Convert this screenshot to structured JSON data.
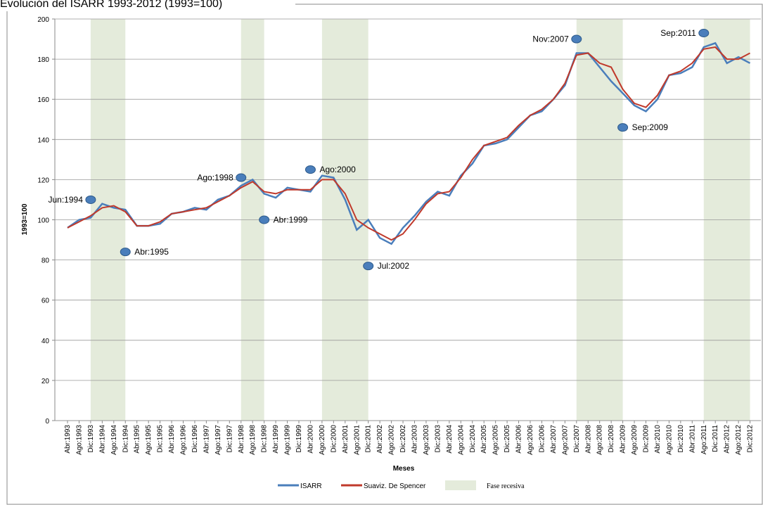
{
  "chart_data": {
    "type": "line",
    "title": "Evolución del ISARR 1993-2012 (1993=100)",
    "y_label": "1993=100",
    "x_label": "Meses",
    "categories": [
      "Abr:1993",
      "Ago:1993",
      "Dic:1993",
      "Abr:1994",
      "Ago:1994",
      "Dic:1994",
      "Abr:1995",
      "Ago:1995",
      "Dic:1995",
      "Abr:1996",
      "Ago:1996",
      "Dic:1996",
      "Abr:1997",
      "Ago:1997",
      "Dic:1997",
      "Abr:1998",
      "Ago:1998",
      "Dic:1998",
      "Abr:1999",
      "Ago:1999",
      "Dic:1999",
      "Abr:2000",
      "Ago:2000",
      "Dic:2000",
      "Abr:2001",
      "Ago:2001",
      "Dic:2001",
      "Abr:2002",
      "Ago:2002",
      "Dic:2002",
      "Abr:2003",
      "Ago:2003",
      "Dic:2003",
      "Abr:2004",
      "Ago:2004",
      "Dic:2004",
      "Abr:2005",
      "Ago:2005",
      "Dic:2005",
      "Abr:2006",
      "Ago:2006",
      "Dic:2006",
      "Abr:2007",
      "Ago:2007",
      "Dic:2007",
      "Abr:2008",
      "Ago:2008",
      "Dic:2008",
      "Abr:2009",
      "Ago:2009",
      "Dic:2009",
      "Abr:2010",
      "Ago:2010",
      "Dic:2010",
      "Abr:2011",
      "Ago:2011",
      "Dic:2011",
      "Abr:2012",
      "Ago:2012",
      "Dic:2012"
    ],
    "series": [
      {
        "name": "ISARR",
        "color": "#4a7ebb",
        "values": [
          96,
          100,
          101,
          108,
          106,
          105,
          97,
          97,
          98,
          103,
          104,
          106,
          105,
          110,
          112,
          117,
          120,
          113,
          111,
          116,
          115,
          114,
          122,
          121,
          110,
          95,
          100,
          91,
          88,
          96,
          102,
          109,
          114,
          112,
          122,
          128,
          137,
          138,
          140,
          146,
          152,
          154,
          160,
          167,
          183,
          183,
          176,
          169,
          163,
          157,
          154,
          160,
          172,
          173,
          176,
          186,
          188,
          178,
          181,
          178
        ]
      },
      {
        "name": "Suaviz. De Spencer",
        "color": "#c0392b",
        "values": [
          96,
          99,
          102,
          106,
          107,
          104,
          97,
          97,
          99,
          103,
          104,
          105,
          106,
          109,
          112,
          116,
          119,
          114,
          113,
          115,
          115,
          115,
          120,
          120,
          113,
          100,
          96,
          93,
          90,
          93,
          100,
          108,
          113,
          114,
          121,
          130,
          137,
          139,
          141,
          147,
          152,
          155,
          160,
          168,
          182,
          183,
          178,
          176,
          165,
          158,
          156,
          162,
          172,
          174,
          178,
          185,
          186,
          180,
          180,
          183
        ]
      }
    ],
    "recession_label": "Fase recesiva",
    "recession_color": "#e4ebdb",
    "recessions": [
      [
        "Dic:1993",
        "Dic:1994"
      ],
      [
        "Abr:1998",
        "Dic:1998"
      ],
      [
        "Ago:2000",
        "Dic:2001"
      ],
      [
        "Dic:2007",
        "Abr:2009"
      ],
      [
        "Ago:2011",
        "Dic:2012"
      ]
    ],
    "annotations": [
      {
        "label": "Jun:1994",
        "at": "Dic:1993",
        "y": 110,
        "side": "left"
      },
      {
        "label": "Abr:1995",
        "at": "Dic:1994",
        "y": 84,
        "side": "right"
      },
      {
        "label": "Ago:1998",
        "at": "Abr:1998",
        "y": 121,
        "side": "left"
      },
      {
        "label": "Abr:1999",
        "at": "Dic:1998",
        "y": 100,
        "side": "right"
      },
      {
        "label": "Ago:2000",
        "at": "Abr:2000",
        "y": 125,
        "side": "right"
      },
      {
        "label": "Jul:2002",
        "at": "Dic:2001",
        "y": 77,
        "side": "right"
      },
      {
        "label": "Nov:2007",
        "at": "Dic:2007",
        "y": 190,
        "side": "left"
      },
      {
        "label": "Sep:2009",
        "at": "Abr:2009",
        "y": 146,
        "side": "right"
      },
      {
        "label": "Sep:2011",
        "at": "Ago:2011",
        "y": 193,
        "side": "left"
      }
    ],
    "ylim": [
      0,
      200
    ],
    "yticks": [
      0,
      20,
      40,
      60,
      80,
      100,
      120,
      140,
      160,
      180,
      200
    ],
    "grid": true
  }
}
